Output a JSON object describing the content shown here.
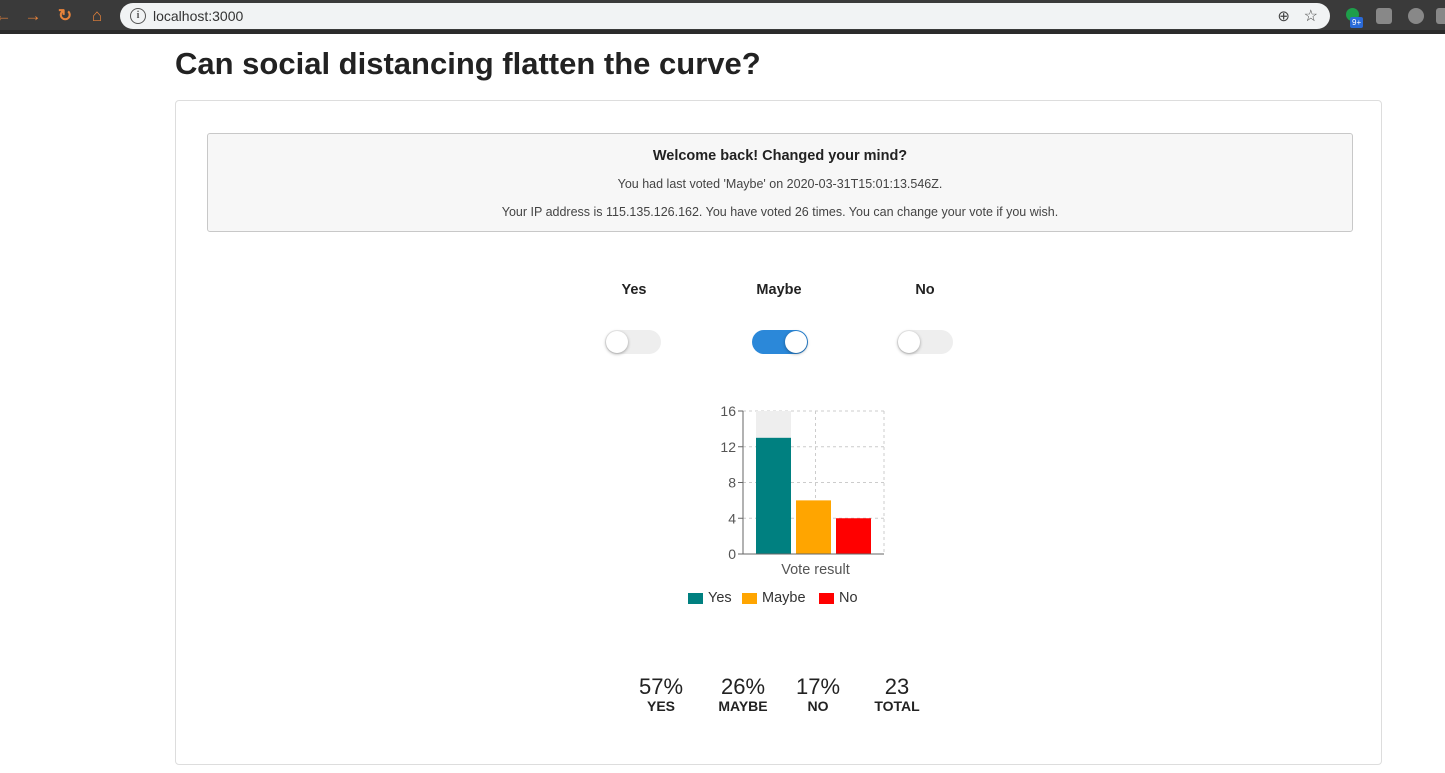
{
  "browser": {
    "url": "localhost:3000",
    "extension_badge": "9+"
  },
  "page": {
    "title": "Can social distancing flatten the curve?"
  },
  "notice": {
    "heading": "Welcome back! Changed your mind?",
    "last_vote": "You had last voted 'Maybe' on 2020-03-31T15:01:13.546Z.",
    "ip_info": "Your IP address is 115.135.126.162. You have voted 26 times. You can change your vote if you wish."
  },
  "options": [
    {
      "label": "Yes",
      "selected": false
    },
    {
      "label": "Maybe",
      "selected": true
    },
    {
      "label": "No",
      "selected": false
    }
  ],
  "colors": {
    "yes": "#008080",
    "maybe": "#ffa500",
    "no": "#ff0000",
    "toggle_on": "#2b88d9"
  },
  "chart_data": {
    "type": "bar",
    "categories": [
      "Vote result"
    ],
    "xlabel": "Vote result",
    "ylim": [
      0,
      16
    ],
    "yticks": [
      "0",
      "4",
      "8",
      "12",
      "16"
    ],
    "grid": true,
    "legend_position": "bottom",
    "series": [
      {
        "name": "Yes",
        "values": [
          13
        ]
      },
      {
        "name": "Maybe",
        "values": [
          6
        ]
      },
      {
        "name": "No",
        "values": [
          4
        ]
      }
    ]
  },
  "stats": [
    {
      "value": "57%",
      "label": "YES"
    },
    {
      "value": "26%",
      "label": "MAYBE"
    },
    {
      "value": "17%",
      "label": "NO"
    },
    {
      "value": "23",
      "label": "TOTAL"
    }
  ]
}
